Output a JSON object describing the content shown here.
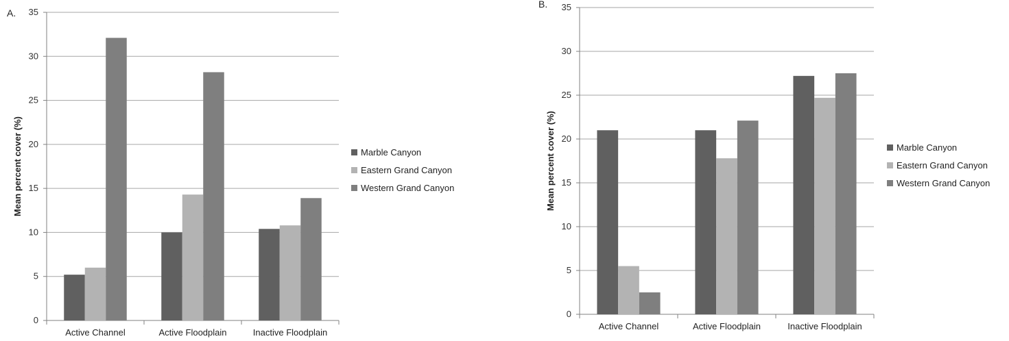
{
  "chart_data": [
    {
      "type": "bar",
      "panel_label": "A.",
      "ylabel": "Mean percent cover (%)",
      "xlabel": "",
      "ylim": [
        0,
        35
      ],
      "yticks": [
        "0",
        "5",
        "10",
        "15",
        "20",
        "25",
        "30",
        "35"
      ],
      "grid": true,
      "legend_position": "right",
      "categories": [
        "Active Channel",
        "Active Floodplain",
        "Inactive Floodplain"
      ],
      "series": [
        {
          "name": "Marble Canyon",
          "color": "#606060",
          "values": [
            5.2,
            10.0,
            10.4
          ]
        },
        {
          "name": "Eastern Grand Canyon",
          "color": "#b3b3b3",
          "values": [
            6.0,
            14.3,
            10.8
          ]
        },
        {
          "name": "Western Grand Canyon",
          "color": "#7f7f7f",
          "values": [
            32.1,
            28.2,
            13.9
          ]
        }
      ]
    },
    {
      "type": "bar",
      "panel_label": "B.",
      "ylabel": "Mean percent cover (%)",
      "xlabel": "",
      "ylim": [
        0,
        35
      ],
      "yticks": [
        "0",
        "5",
        "10",
        "15",
        "20",
        "25",
        "30",
        "35"
      ],
      "grid": true,
      "legend_position": "right",
      "categories": [
        "Active Channel",
        "Active Floodplain",
        "Inactive Floodplain"
      ],
      "series": [
        {
          "name": "Marble Canyon",
          "color": "#606060",
          "values": [
            21.0,
            21.0,
            27.2
          ]
        },
        {
          "name": "Eastern Grand Canyon",
          "color": "#b3b3b3",
          "values": [
            5.5,
            17.8,
            24.7
          ]
        },
        {
          "name": "Western Grand Canyon",
          "color": "#7f7f7f",
          "values": [
            2.5,
            22.1,
            27.5
          ]
        }
      ]
    }
  ]
}
